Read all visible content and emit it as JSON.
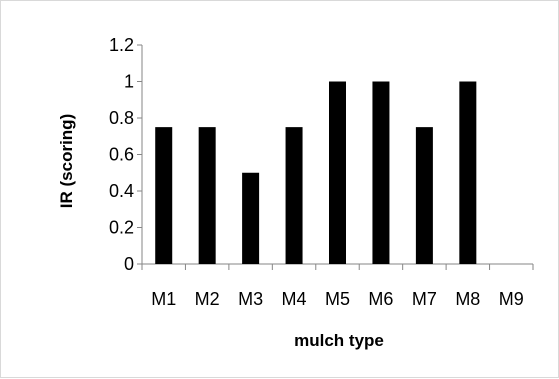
{
  "chart_data": {
    "type": "bar",
    "title": "",
    "xlabel": "mulch type",
    "ylabel": "IR (scoring)",
    "categories": [
      "M1",
      "M2",
      "M3",
      "M4",
      "M5",
      "M6",
      "M7",
      "M8",
      "M9"
    ],
    "values": [
      0.75,
      0.75,
      0.5,
      0.75,
      1,
      1,
      0.75,
      1,
      0
    ],
    "ylim": [
      0,
      1.2
    ],
    "yticks": [
      "0",
      "0.2",
      "0.4",
      "0.6",
      "0.8",
      "1",
      "1.2"
    ],
    "grid": false,
    "legend": "none",
    "bar_color": "#000000"
  }
}
